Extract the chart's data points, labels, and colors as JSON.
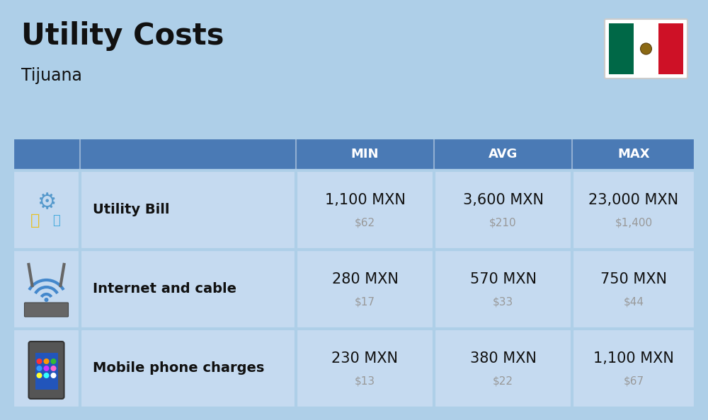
{
  "title": "Utility Costs",
  "subtitle": "Tijuana",
  "background_color": "#aecfe8",
  "header_color": "#4a7ab5",
  "header_text_color": "#ffffff",
  "row_color": "#c5daf0",
  "divider_color": "#aecfe8",
  "col_headers": [
    "MIN",
    "AVG",
    "MAX"
  ],
  "rows": [
    {
      "label": "Utility Bill",
      "icon": "utility",
      "min_mxn": "1,100 MXN",
      "min_usd": "$62",
      "avg_mxn": "3,600 MXN",
      "avg_usd": "$210",
      "max_mxn": "23,000 MXN",
      "max_usd": "$1,400"
    },
    {
      "label": "Internet and cable",
      "icon": "internet",
      "min_mxn": "280 MXN",
      "min_usd": "$17",
      "avg_mxn": "570 MXN",
      "avg_usd": "$33",
      "max_mxn": "750 MXN",
      "max_usd": "$44"
    },
    {
      "label": "Mobile phone charges",
      "icon": "mobile",
      "min_mxn": "230 MXN",
      "min_usd": "$13",
      "avg_mxn": "380 MXN",
      "avg_usd": "$22",
      "max_mxn": "1,100 MXN",
      "max_usd": "$67"
    }
  ],
  "title_fontsize": 30,
  "subtitle_fontsize": 17,
  "header_fontsize": 13,
  "cell_main_fontsize": 15,
  "cell_sub_fontsize": 11,
  "label_fontsize": 14,
  "flag_green": "#006847",
  "flag_white": "#ffffff",
  "flag_red": "#ce1126",
  "text_dark": "#111111",
  "text_gray": "#999999"
}
